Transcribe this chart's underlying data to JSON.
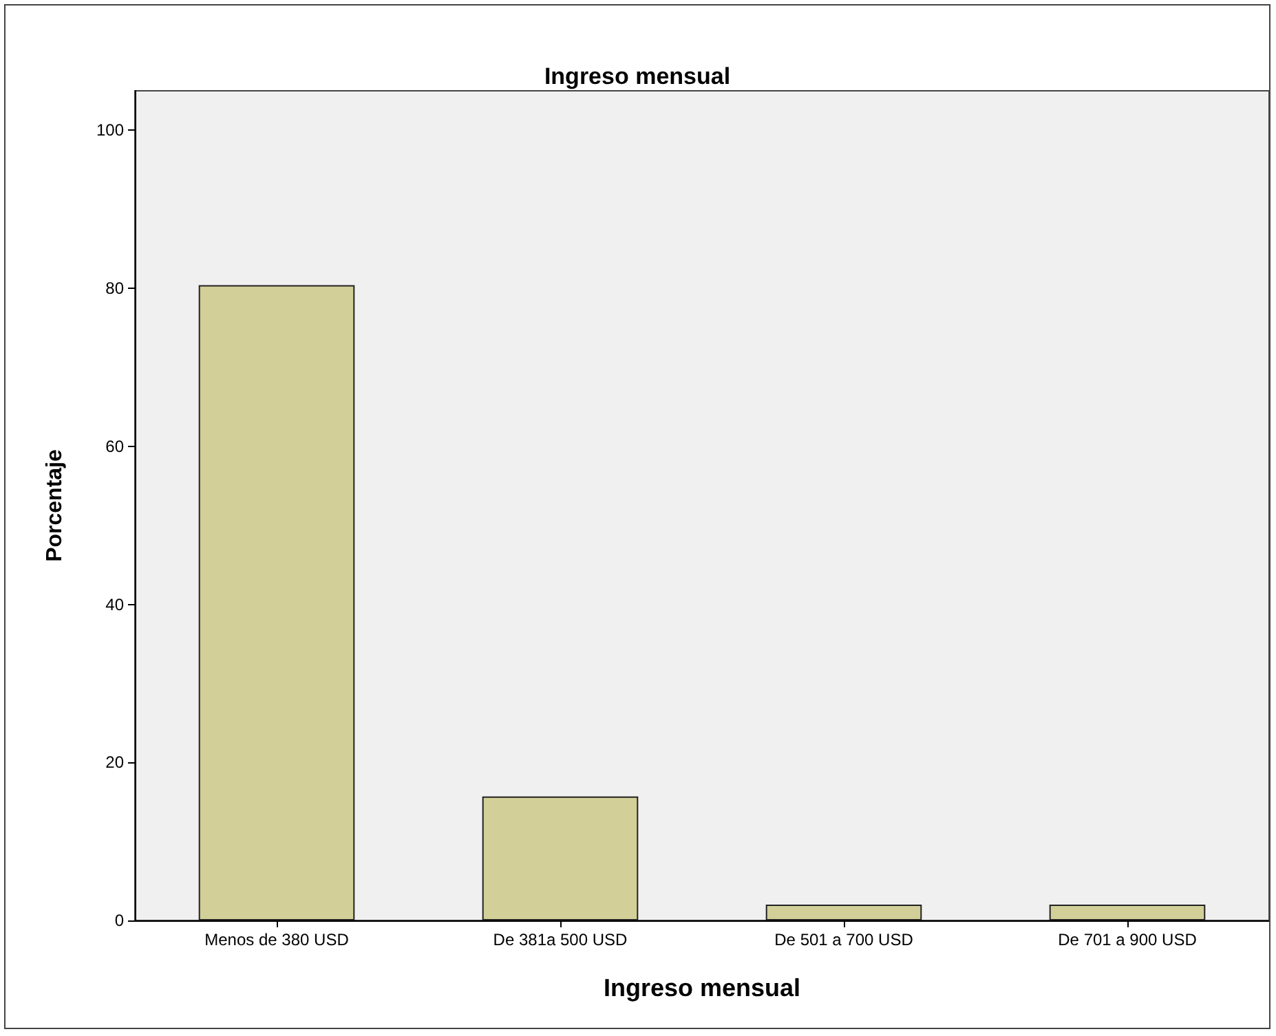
{
  "chart_data": {
    "type": "bar",
    "title": "Ingreso mensual",
    "xlabel": "Ingreso mensual",
    "ylabel": "Porcentaje",
    "categories": [
      "Menos de 380 USD",
      "De 381a 500 USD",
      "De 501 a 700 USD",
      "De 701 a 900 USD"
    ],
    "values": [
      80.4,
      15.7,
      2.0,
      2.0
    ],
    "color": "#d2cf98",
    "ylim": [
      0,
      105
    ],
    "yticks": [
      0,
      20,
      40,
      60,
      80,
      100
    ],
    "grid": false
  }
}
